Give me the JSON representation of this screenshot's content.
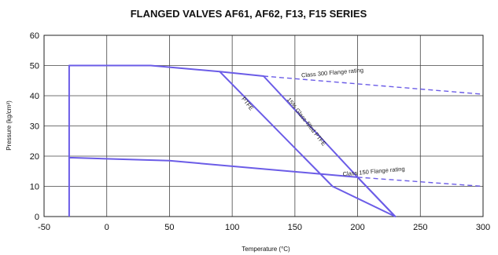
{
  "chart_data": {
    "type": "line",
    "title": "FLANGED VALVES AF61, AF62, F13, F15 SERIES",
    "xlabel": "Temperature (°C)",
    "ylabel": "Pressure (kg/cm²)",
    "xlim": [
      -50,
      300
    ],
    "ylim": [
      0,
      60
    ],
    "xticks": [
      -50,
      0,
      50,
      100,
      150,
      200,
      250,
      300
    ],
    "yticks": [
      0,
      10,
      20,
      30,
      40,
      50,
      60
    ],
    "grid": true,
    "colors": {
      "series": "#6b5ce7",
      "grid": "#444444"
    },
    "series": [
      {
        "name": "PTFE",
        "style": "solid",
        "x": [
          -30,
          -30,
          35,
          90,
          180,
          230,
          200,
          50,
          -30
        ],
        "y": [
          0,
          50,
          50,
          48,
          10,
          0,
          13,
          18.5,
          19.5
        ]
      },
      {
        "name": "15% Glass-filled PTFE",
        "style": "solid",
        "x": [
          90,
          125,
          200,
          230
        ],
        "y": [
          48,
          46.5,
          13,
          0
        ]
      },
      {
        "name": "Class 300 Flange rating",
        "style": "dashed",
        "x": [
          125,
          300
        ],
        "y": [
          46.5,
          40.5
        ]
      },
      {
        "name": "Class 150 Flange rating",
        "style": "dashed",
        "x": [
          200,
          300
        ],
        "y": [
          13,
          10
        ]
      }
    ],
    "annotations": [
      {
        "text": "Class 300 Flange rating",
        "x": 180,
        "y": 47,
        "angle": -5
      },
      {
        "text": "15% Glass-filled PTFE",
        "x": 158,
        "y": 31,
        "angle": 52
      },
      {
        "text": "PTFE",
        "x": 111,
        "y": 37,
        "angle": 52
      },
      {
        "text": "Class 150 Flange rating",
        "x": 213,
        "y": 14.3,
        "angle": -5
      }
    ]
  }
}
